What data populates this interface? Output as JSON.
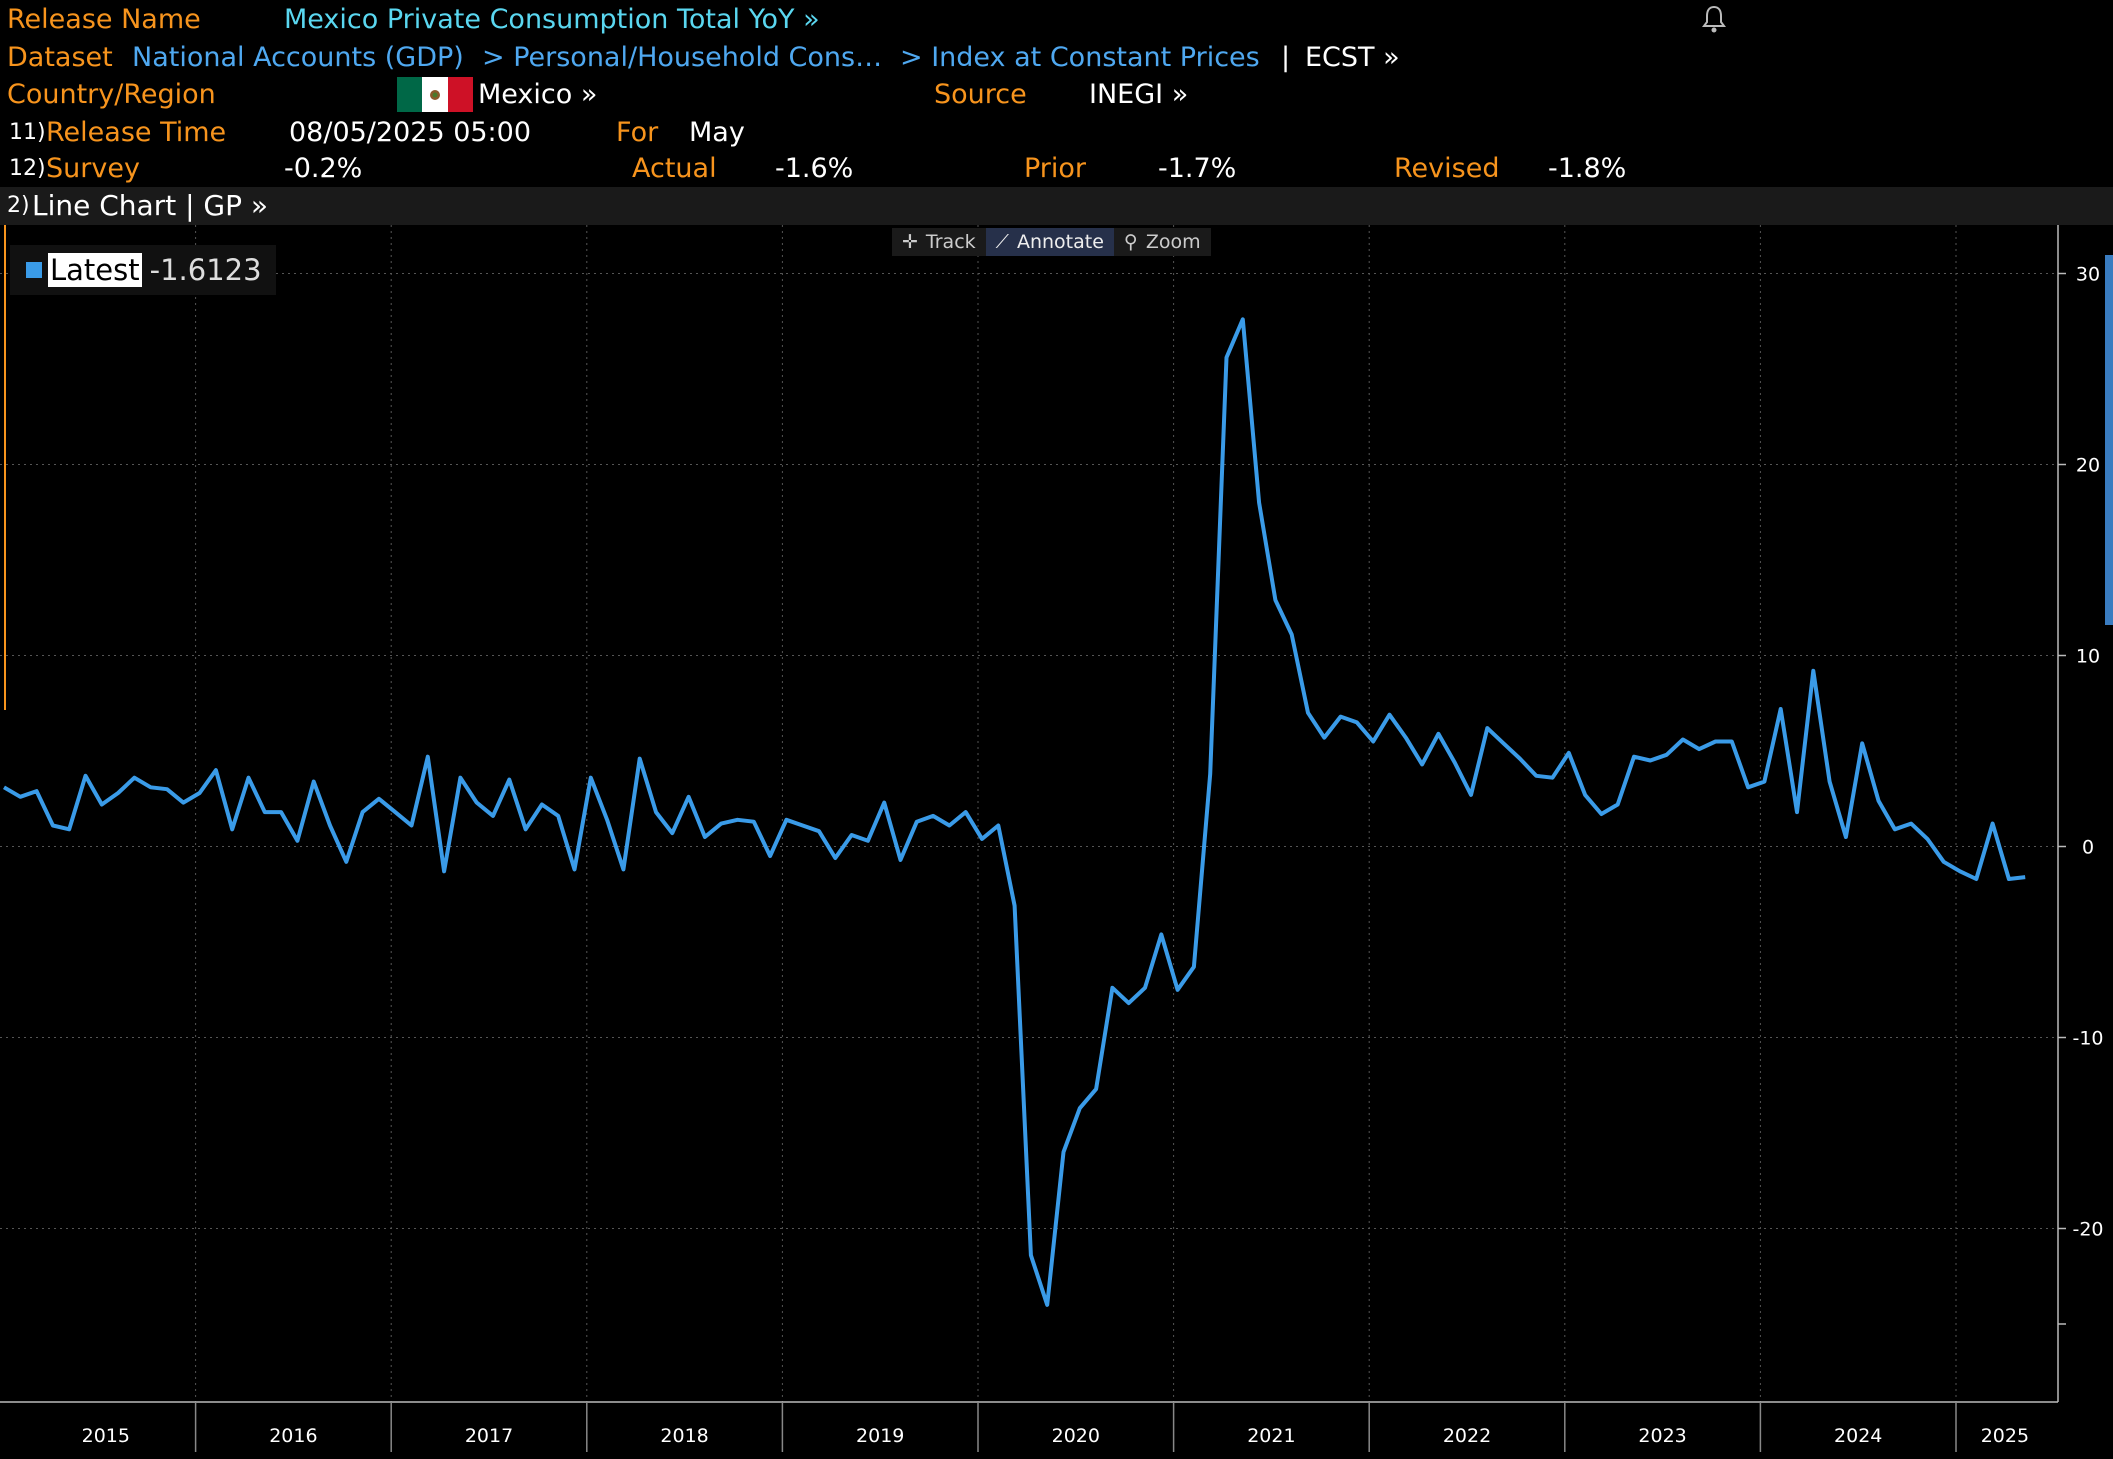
{
  "header": {
    "release_name_label": "Release Name",
    "release_name_value": "Mexico Private Consumption Total YoY »",
    "dataset_label": "Dataset",
    "dataset_path_1": "National Accounts (GDP)",
    "dataset_path_2": "> Personal/Household Cons…",
    "dataset_path_3": "> Index at Constant Prices",
    "dataset_sep": "|",
    "dataset_code": "ECST »",
    "country_label": "Country/Region",
    "country_value": "Mexico »",
    "source_label": "Source",
    "source_value": "INEGI »",
    "release_time_num": "11)",
    "release_time_label": "Release Time",
    "release_time_value": "08/05/2025 05:00",
    "for_label": "For",
    "for_value": "May",
    "survey_num": "12)",
    "survey_label": "Survey",
    "survey_value": "-0.2%",
    "actual_label": "Actual",
    "actual_value": "-1.6%",
    "prior_label": "Prior",
    "prior_value": "-1.7%",
    "revised_label": "Revised",
    "revised_value": "-1.8%"
  },
  "chart_bar": {
    "num": "2)",
    "title": "Line Chart | GP »"
  },
  "toolbar": {
    "track": "Track",
    "annotate": "Annotate",
    "zoom": "Zoom"
  },
  "legend": {
    "label": "Latest",
    "value": "-1.6123"
  },
  "colors": {
    "orange": "#f7941d",
    "cyan": "#5ad7f0",
    "line": "#3a9be8",
    "flag_green": "#006847",
    "flag_red": "#ce1126"
  },
  "chart_data": {
    "type": "line",
    "title": "",
    "xlabel": "",
    "ylabel": "",
    "ylim": [
      -25,
      30
    ],
    "xlim": [
      "2015-01",
      "2025-07"
    ],
    "y_ticks": [
      30,
      20,
      10,
      0,
      -10,
      -20
    ],
    "x_tick_labels": [
      "2015",
      "2016",
      "2017",
      "2018",
      "2019",
      "2020",
      "2021",
      "2022",
      "2023",
      "2024",
      "2025"
    ],
    "grid": true,
    "legend_position": "top-left",
    "series": [
      {
        "name": "Latest",
        "x": [
          "2015-01",
          "2015-02",
          "2015-03",
          "2015-04",
          "2015-05",
          "2015-06",
          "2015-07",
          "2015-08",
          "2015-09",
          "2015-10",
          "2015-11",
          "2015-12",
          "2016-01",
          "2016-02",
          "2016-03",
          "2016-04",
          "2016-05",
          "2016-06",
          "2016-07",
          "2016-08",
          "2016-09",
          "2016-10",
          "2016-11",
          "2016-12",
          "2017-01",
          "2017-02",
          "2017-03",
          "2017-04",
          "2017-05",
          "2017-06",
          "2017-07",
          "2017-08",
          "2017-09",
          "2017-10",
          "2017-11",
          "2017-12",
          "2018-01",
          "2018-02",
          "2018-03",
          "2018-04",
          "2018-05",
          "2018-06",
          "2018-07",
          "2018-08",
          "2018-09",
          "2018-10",
          "2018-11",
          "2018-12",
          "2019-01",
          "2019-02",
          "2019-03",
          "2019-04",
          "2019-05",
          "2019-06",
          "2019-07",
          "2019-08",
          "2019-09",
          "2019-10",
          "2019-11",
          "2019-12",
          "2020-01",
          "2020-02",
          "2020-03",
          "2020-04",
          "2020-05",
          "2020-06",
          "2020-07",
          "2020-08",
          "2020-09",
          "2020-10",
          "2020-11",
          "2020-12",
          "2021-01",
          "2021-02",
          "2021-03",
          "2021-04",
          "2021-05",
          "2021-06",
          "2021-07",
          "2021-08",
          "2021-09",
          "2021-10",
          "2021-11",
          "2021-12",
          "2022-01",
          "2022-02",
          "2022-03",
          "2022-04",
          "2022-05",
          "2022-06",
          "2022-07",
          "2022-08",
          "2022-09",
          "2022-10",
          "2022-11",
          "2022-12",
          "2023-01",
          "2023-02",
          "2023-03",
          "2023-04",
          "2023-05",
          "2023-06",
          "2023-07",
          "2023-08",
          "2023-09",
          "2023-10",
          "2023-11",
          "2023-12",
          "2024-01",
          "2024-02",
          "2024-03",
          "2024-04",
          "2024-05",
          "2024-06",
          "2024-07",
          "2024-08",
          "2024-09",
          "2024-10",
          "2024-11",
          "2024-12",
          "2025-01",
          "2025-02",
          "2025-03",
          "2025-04",
          "2025-05"
        ],
        "values": [
          3.1,
          2.6,
          2.9,
          1.1,
          0.9,
          3.7,
          2.2,
          2.8,
          3.6,
          3.1,
          3.0,
          2.3,
          2.8,
          4.0,
          0.9,
          3.6,
          1.8,
          1.8,
          0.3,
          3.4,
          1.1,
          -0.8,
          1.8,
          2.5,
          1.8,
          1.1,
          4.7,
          -1.3,
          3.6,
          2.3,
          1.6,
          3.5,
          0.9,
          2.2,
          1.6,
          -1.2,
          3.6,
          1.4,
          -1.2,
          4.6,
          1.8,
          0.7,
          2.6,
          0.5,
          1.2,
          1.4,
          1.3,
          -0.5,
          1.4,
          1.1,
          0.8,
          -0.6,
          0.6,
          0.3,
          2.3,
          -0.7,
          1.3,
          1.6,
          1.1,
          1.8,
          0.4,
          1.1,
          -3.1,
          -21.4,
          -24.0,
          -16.0,
          -13.7,
          -12.7,
          -7.4,
          -8.2,
          -7.4,
          -4.6,
          -7.5,
          -6.3,
          3.8,
          25.6,
          27.6,
          18.0,
          12.9,
          11.1,
          7.0,
          5.7,
          6.8,
          6.5,
          5.5,
          6.9,
          5.7,
          4.3,
          5.9,
          4.4,
          2.7,
          6.2,
          5.4,
          4.6,
          3.7,
          3.6,
          4.9,
          2.7,
          1.7,
          2.2,
          4.7,
          4.5,
          4.8,
          5.6,
          5.1,
          5.5,
          5.5,
          3.1,
          3.4,
          7.2,
          1.8,
          9.2,
          3.4,
          0.5,
          5.4,
          2.4,
          0.9,
          1.2,
          0.4,
          -0.8,
          -1.3,
          -1.7,
          1.2,
          -1.7,
          -1.6
        ]
      }
    ]
  }
}
